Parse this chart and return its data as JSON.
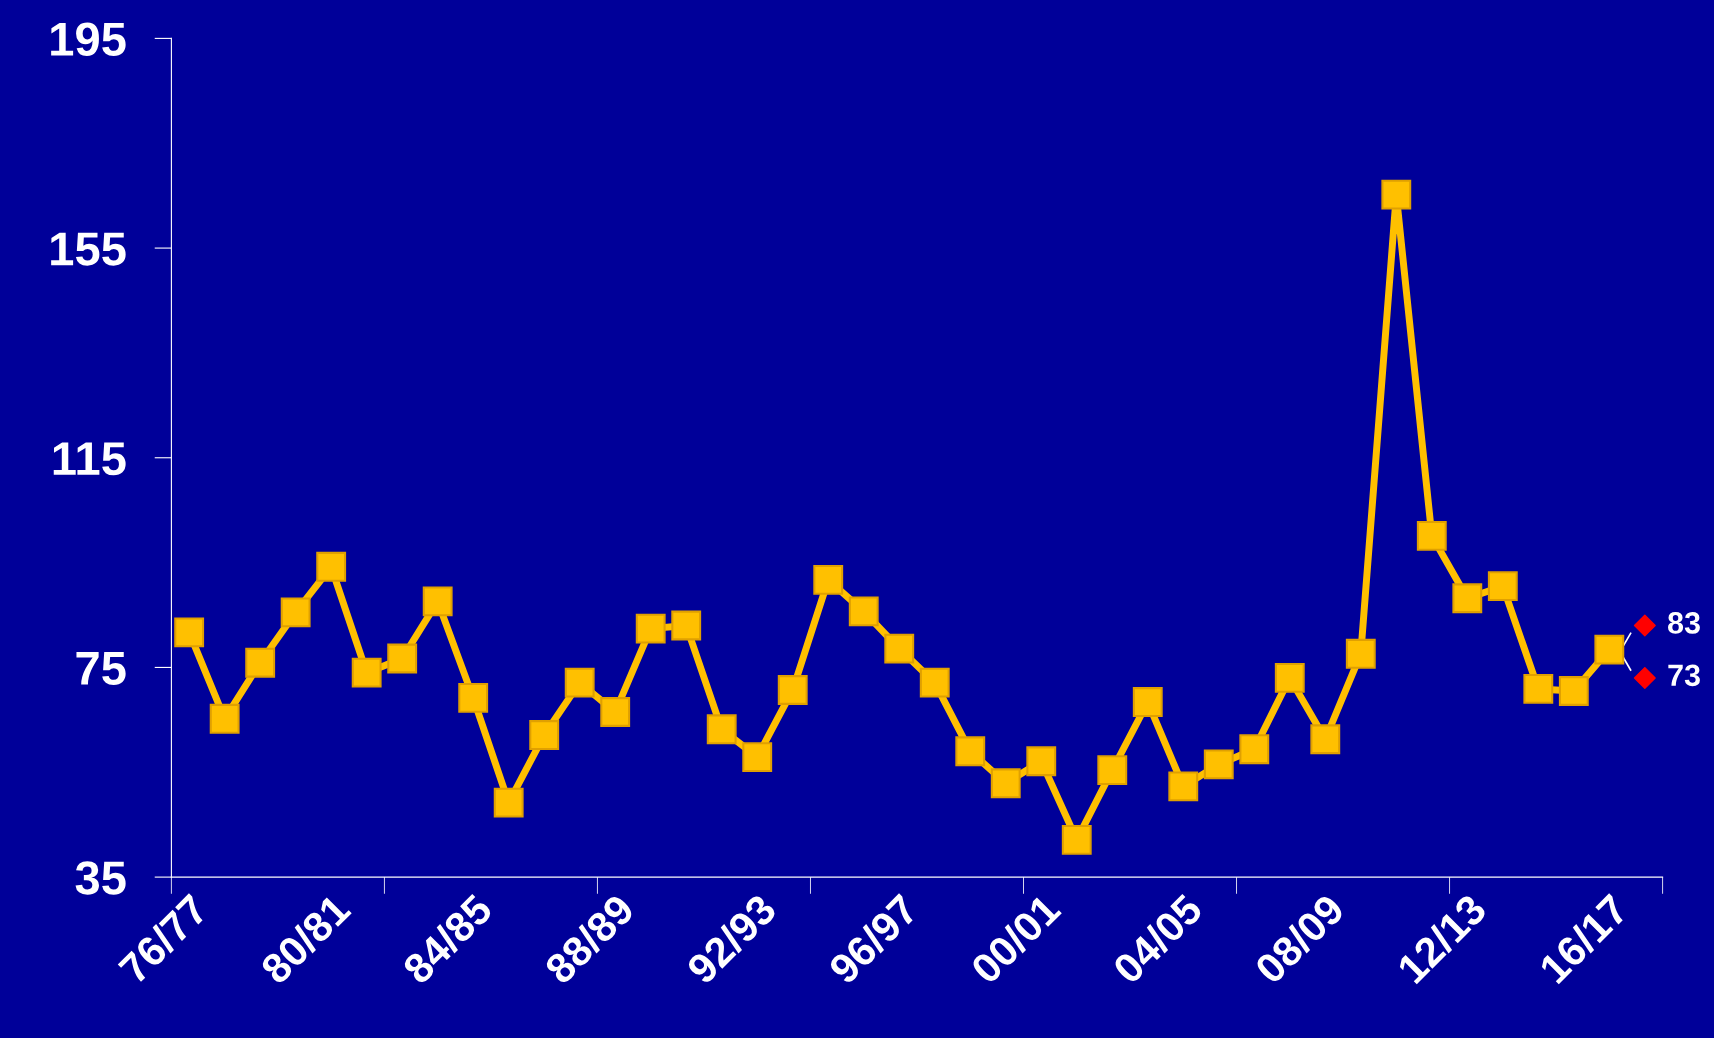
{
  "chart_data": {
    "type": "line",
    "categories": [
      "76/77",
      null,
      null,
      null,
      "80/81",
      null,
      null,
      null,
      "84/85",
      null,
      null,
      null,
      "88/89",
      null,
      null,
      null,
      "92/93",
      null,
      null,
      null,
      "96/97",
      null,
      null,
      null,
      "00/01",
      null,
      null,
      null,
      "04/05",
      null,
      null,
      null,
      "08/09",
      null,
      null,
      null,
      "12/13",
      null,
      null,
      null,
      "16/17",
      null
    ],
    "series": [
      {
        "color": "#ffc000",
        "marker": "square",
        "line_style": "solid",
        "values": [
          81.7,
          65.2,
          75.9,
          85.5,
          94.2,
          74.0,
          76.7,
          87.6,
          69.2,
          49.2,
          62.1,
          72.1,
          66.5,
          82.4,
          83.0,
          63.2,
          57.9,
          70.7,
          91.7,
          85.7,
          78.6,
          72.1,
          59.0,
          52.9,
          57.1,
          42.1,
          55.4,
          68.4,
          52.3,
          56.5,
          59.4,
          73.0,
          61.3,
          77.6,
          165.2,
          100.1,
          88.2,
          90.5,
          70.9,
          70.5,
          78.4,
          null
        ]
      },
      {
        "type": "scatter",
        "color": "#ff0000",
        "marker": "diamond",
        "values": [
          null,
          null,
          null,
          null,
          null,
          null,
          null,
          null,
          null,
          null,
          null,
          null,
          null,
          null,
          null,
          null,
          null,
          null,
          null,
          null,
          null,
          null,
          null,
          null,
          null,
          null,
          null,
          null,
          null,
          null,
          null,
          null,
          null,
          null,
          null,
          null,
          null,
          null,
          null,
          null,
          null,
          83
        ],
        "value_labels": [
          null,
          null,
          null,
          null,
          null,
          null,
          null,
          null,
          null,
          null,
          null,
          null,
          null,
          null,
          null,
          null,
          null,
          null,
          null,
          null,
          null,
          null,
          null,
          null,
          null,
          null,
          null,
          null,
          null,
          null,
          null,
          null,
          null,
          null,
          null,
          null,
          null,
          null,
          null,
          null,
          null,
          "83"
        ]
      },
      {
        "type": "scatter",
        "color": "#ff0000",
        "marker": "diamond",
        "values": [
          null,
          null,
          null,
          null,
          null,
          null,
          null,
          null,
          null,
          null,
          null,
          null,
          null,
          null,
          null,
          null,
          null,
          null,
          null,
          null,
          null,
          null,
          null,
          null,
          null,
          null,
          null,
          null,
          null,
          null,
          null,
          null,
          null,
          null,
          null,
          null,
          null,
          null,
          null,
          null,
          null,
          73
        ],
        "value_labels": [
          null,
          null,
          null,
          null,
          null,
          null,
          null,
          null,
          null,
          null,
          null,
          null,
          null,
          null,
          null,
          null,
          null,
          null,
          null,
          null,
          null,
          null,
          null,
          null,
          null,
          null,
          null,
          null,
          null,
          null,
          null,
          null,
          null,
          null,
          null,
          null,
          null,
          null,
          null,
          null,
          null,
          "73"
        ]
      }
    ],
    "ylim": [
      35,
      195
    ],
    "yticks": [
      35,
      75,
      115,
      155,
      195
    ],
    "grid": false,
    "legend": false
  }
}
